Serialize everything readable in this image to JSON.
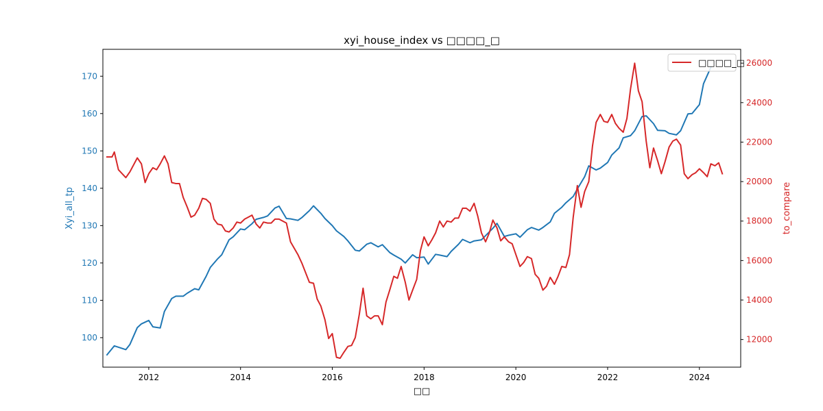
{
  "chart_data": {
    "type": "line",
    "title": "xyi_house_index vs □□□□_□",
    "xlabel": "□□",
    "ylabel_left": "Xyi_all_tp",
    "ylabel_right": "to_compare",
    "xlim": [
      2011.0,
      2024.9
    ],
    "ylim_left": [
      92.1,
      177.2
    ],
    "ylim_right": [
      10600,
      26700
    ],
    "x_ticks": [
      2012,
      2014,
      2016,
      2018,
      2020,
      2022,
      2024
    ],
    "x_tick_labels": [
      "2012",
      "2014",
      "2016",
      "2018",
      "2020",
      "2022",
      "2024"
    ],
    "y_left_ticks": [
      100,
      110,
      120,
      130,
      140,
      150,
      160,
      170
    ],
    "y_left_tick_labels": [
      "100",
      "110",
      "120",
      "130",
      "140",
      "150",
      "160",
      "170"
    ],
    "y_right_ticks": [
      12000,
      14000,
      16000,
      18000,
      20000,
      22000,
      24000,
      26000
    ],
    "y_right_tick_labels": [
      "12000",
      "14000",
      "16000",
      "18000",
      "20000",
      "22000",
      "24000",
      "26000"
    ],
    "legend": {
      "placement": "top-right",
      "entries": [
        "□□□□_□"
      ]
    },
    "colors": {
      "left": "#1f77b4",
      "right": "#d62728",
      "axis": "#000000"
    },
    "series": [
      {
        "name": "Xyi_all_tp",
        "axis": "left",
        "color": "#1f77b4",
        "points": [
          [
            2011.09,
            95.4
          ],
          [
            2011.25,
            97.8
          ],
          [
            2011.5,
            96.8
          ],
          [
            2011.59,
            98.2
          ],
          [
            2011.75,
            102.7
          ],
          [
            2011.84,
            103.7
          ],
          [
            2012.0,
            104.6
          ],
          [
            2012.09,
            102.9
          ],
          [
            2012.25,
            102.6
          ],
          [
            2012.34,
            107.0
          ],
          [
            2012.5,
            110.5
          ],
          [
            2012.59,
            111.1
          ],
          [
            2012.75,
            111.1
          ],
          [
            2012.84,
            111.9
          ],
          [
            2013.0,
            113.1
          ],
          [
            2013.09,
            112.8
          ],
          [
            2013.25,
            116.4
          ],
          [
            2013.34,
            118.8
          ],
          [
            2013.5,
            121.1
          ],
          [
            2013.59,
            122.2
          ],
          [
            2013.75,
            126.2
          ],
          [
            2013.84,
            127.0
          ],
          [
            2014.0,
            129.1
          ],
          [
            2014.09,
            128.9
          ],
          [
            2014.25,
            130.5
          ],
          [
            2014.34,
            131.7
          ],
          [
            2014.5,
            132.2
          ],
          [
            2014.59,
            132.6
          ],
          [
            2014.75,
            134.7
          ],
          [
            2014.84,
            135.2
          ],
          [
            2015.0,
            131.9
          ],
          [
            2015.09,
            131.8
          ],
          [
            2015.25,
            131.4
          ],
          [
            2015.34,
            132.2
          ],
          [
            2015.5,
            134.0
          ],
          [
            2015.59,
            135.3
          ],
          [
            2015.75,
            133.3
          ],
          [
            2015.84,
            131.9
          ],
          [
            2016.0,
            130.0
          ],
          [
            2016.09,
            128.6
          ],
          [
            2016.25,
            127.1
          ],
          [
            2016.34,
            125.9
          ],
          [
            2016.5,
            123.4
          ],
          [
            2016.59,
            123.2
          ],
          [
            2016.75,
            125.0
          ],
          [
            2016.84,
            125.4
          ],
          [
            2017.0,
            124.3
          ],
          [
            2017.09,
            124.9
          ],
          [
            2017.25,
            122.8
          ],
          [
            2017.34,
            122.1
          ],
          [
            2017.5,
            121.0
          ],
          [
            2017.59,
            120.0
          ],
          [
            2017.75,
            122.2
          ],
          [
            2017.84,
            121.4
          ],
          [
            2018.0,
            121.6
          ],
          [
            2018.09,
            119.7
          ],
          [
            2018.25,
            122.3
          ],
          [
            2018.34,
            122.1
          ],
          [
            2018.5,
            121.7
          ],
          [
            2018.59,
            123.1
          ],
          [
            2018.75,
            125.0
          ],
          [
            2018.84,
            126.3
          ],
          [
            2019.0,
            125.4
          ],
          [
            2019.09,
            125.9
          ],
          [
            2019.25,
            126.2
          ],
          [
            2019.34,
            127.3
          ],
          [
            2019.5,
            129.3
          ],
          [
            2019.59,
            130.6
          ],
          [
            2019.75,
            127.1
          ],
          [
            2019.84,
            127.4
          ],
          [
            2020.0,
            127.8
          ],
          [
            2020.09,
            126.9
          ],
          [
            2020.25,
            128.9
          ],
          [
            2020.34,
            129.5
          ],
          [
            2020.5,
            128.8
          ],
          [
            2020.59,
            129.5
          ],
          [
            2020.75,
            131.0
          ],
          [
            2020.84,
            133.3
          ],
          [
            2021.0,
            134.9
          ],
          [
            2021.09,
            136.1
          ],
          [
            2021.25,
            137.8
          ],
          [
            2021.34,
            139.8
          ],
          [
            2021.5,
            143.1
          ],
          [
            2021.59,
            146.0
          ],
          [
            2021.75,
            144.9
          ],
          [
            2021.84,
            145.4
          ],
          [
            2022.0,
            146.9
          ],
          [
            2022.09,
            148.9
          ],
          [
            2022.25,
            150.8
          ],
          [
            2022.34,
            153.5
          ],
          [
            2022.5,
            154.1
          ],
          [
            2022.59,
            155.4
          ],
          [
            2022.75,
            159.2
          ],
          [
            2022.84,
            159.4
          ],
          [
            2023.0,
            157.3
          ],
          [
            2023.09,
            155.5
          ],
          [
            2023.25,
            155.4
          ],
          [
            2023.34,
            154.7
          ],
          [
            2023.5,
            154.3
          ],
          [
            2023.59,
            155.4
          ],
          [
            2023.75,
            159.9
          ],
          [
            2023.84,
            160.0
          ],
          [
            2024.0,
            162.4
          ],
          [
            2024.09,
            168.0
          ],
          [
            2024.25,
            172.4
          ]
        ]
      },
      {
        "name": "□□□□_□",
        "axis": "right",
        "color": "#d62728",
        "points": [
          [
            2011.09,
            21250
          ],
          [
            2011.2,
            21250
          ],
          [
            2011.25,
            21500
          ],
          [
            2011.34,
            20600
          ],
          [
            2011.5,
            20200
          ],
          [
            2011.59,
            20500
          ],
          [
            2011.75,
            21200
          ],
          [
            2011.84,
            20900
          ],
          [
            2011.92,
            19950
          ],
          [
            2012.0,
            20400
          ],
          [
            2012.09,
            20700
          ],
          [
            2012.17,
            20600
          ],
          [
            2012.25,
            20900
          ],
          [
            2012.34,
            21300
          ],
          [
            2012.42,
            20900
          ],
          [
            2012.5,
            19950
          ],
          [
            2012.59,
            19900
          ],
          [
            2012.67,
            19900
          ],
          [
            2012.75,
            19200
          ],
          [
            2012.84,
            18700
          ],
          [
            2012.92,
            18200
          ],
          [
            2013.0,
            18300
          ],
          [
            2013.09,
            18650
          ],
          [
            2013.17,
            19150
          ],
          [
            2013.25,
            19100
          ],
          [
            2013.34,
            18900
          ],
          [
            2013.42,
            18100
          ],
          [
            2013.5,
            17850
          ],
          [
            2013.59,
            17800
          ],
          [
            2013.67,
            17500
          ],
          [
            2013.75,
            17450
          ],
          [
            2013.84,
            17650
          ],
          [
            2013.92,
            17950
          ],
          [
            2014.0,
            17900
          ],
          [
            2014.09,
            18100
          ],
          [
            2014.17,
            18200
          ],
          [
            2014.25,
            18300
          ],
          [
            2014.34,
            17850
          ],
          [
            2014.42,
            17650
          ],
          [
            2014.5,
            17950
          ],
          [
            2014.59,
            17900
          ],
          [
            2014.67,
            17900
          ],
          [
            2014.75,
            18100
          ],
          [
            2014.84,
            18100
          ],
          [
            2015.0,
            17900
          ],
          [
            2015.09,
            16950
          ],
          [
            2015.25,
            16300
          ],
          [
            2015.34,
            15850
          ],
          [
            2015.5,
            14900
          ],
          [
            2015.59,
            14850
          ],
          [
            2015.67,
            14050
          ],
          [
            2015.75,
            13700
          ],
          [
            2015.84,
            13000
          ],
          [
            2015.92,
            12050
          ],
          [
            2016.0,
            12300
          ],
          [
            2016.09,
            11100
          ],
          [
            2016.17,
            11050
          ],
          [
            2016.25,
            11350
          ],
          [
            2016.34,
            11650
          ],
          [
            2016.42,
            11700
          ],
          [
            2016.5,
            12100
          ],
          [
            2016.59,
            13300
          ],
          [
            2016.67,
            14600
          ],
          [
            2016.75,
            13200
          ],
          [
            2016.84,
            13050
          ],
          [
            2016.92,
            13200
          ],
          [
            2017.0,
            13200
          ],
          [
            2017.09,
            12750
          ],
          [
            2017.17,
            13900
          ],
          [
            2017.25,
            14500
          ],
          [
            2017.34,
            15200
          ],
          [
            2017.42,
            15100
          ],
          [
            2017.5,
            15700
          ],
          [
            2017.59,
            14900
          ],
          [
            2017.67,
            14000
          ],
          [
            2017.75,
            14500
          ],
          [
            2017.84,
            15050
          ],
          [
            2017.92,
            16500
          ],
          [
            2018.0,
            17200
          ],
          [
            2018.09,
            16750
          ],
          [
            2018.17,
            17050
          ],
          [
            2018.25,
            17400
          ],
          [
            2018.34,
            18000
          ],
          [
            2018.42,
            17700
          ],
          [
            2018.5,
            18000
          ],
          [
            2018.59,
            17950
          ],
          [
            2018.67,
            18150
          ],
          [
            2018.75,
            18150
          ],
          [
            2018.84,
            18650
          ],
          [
            2018.92,
            18650
          ],
          [
            2019.0,
            18500
          ],
          [
            2019.09,
            18900
          ],
          [
            2019.17,
            18250
          ],
          [
            2019.25,
            17400
          ],
          [
            2019.34,
            16950
          ],
          [
            2019.42,
            17400
          ],
          [
            2019.5,
            18050
          ],
          [
            2019.59,
            17650
          ],
          [
            2019.67,
            17000
          ],
          [
            2019.75,
            17200
          ],
          [
            2019.84,
            16950
          ],
          [
            2019.92,
            16850
          ],
          [
            2020.0,
            16300
          ],
          [
            2020.09,
            15700
          ],
          [
            2020.17,
            15900
          ],
          [
            2020.25,
            16200
          ],
          [
            2020.34,
            16100
          ],
          [
            2020.42,
            15300
          ],
          [
            2020.5,
            15100
          ],
          [
            2020.59,
            14500
          ],
          [
            2020.67,
            14700
          ],
          [
            2020.75,
            15150
          ],
          [
            2020.84,
            14800
          ],
          [
            2020.92,
            15200
          ],
          [
            2021.0,
            15700
          ],
          [
            2021.09,
            15650
          ],
          [
            2021.17,
            16300
          ],
          [
            2021.25,
            18200
          ],
          [
            2021.34,
            19800
          ],
          [
            2021.42,
            18700
          ],
          [
            2021.5,
            19500
          ],
          [
            2021.59,
            20000
          ],
          [
            2021.67,
            21800
          ],
          [
            2021.75,
            23000
          ],
          [
            2021.84,
            23400
          ],
          [
            2021.92,
            23050
          ],
          [
            2022.0,
            23000
          ],
          [
            2022.09,
            23400
          ],
          [
            2022.17,
            22950
          ],
          [
            2022.25,
            22700
          ],
          [
            2022.34,
            22500
          ],
          [
            2022.42,
            23200
          ],
          [
            2022.5,
            24700
          ],
          [
            2022.59,
            26000
          ],
          [
            2022.67,
            24600
          ],
          [
            2022.75,
            24050
          ],
          [
            2022.84,
            22050
          ],
          [
            2022.92,
            20700
          ],
          [
            2023.0,
            21700
          ],
          [
            2023.09,
            21050
          ],
          [
            2023.17,
            20400
          ],
          [
            2023.25,
            21000
          ],
          [
            2023.34,
            21750
          ],
          [
            2023.42,
            22050
          ],
          [
            2023.5,
            22150
          ],
          [
            2023.59,
            21850
          ],
          [
            2023.67,
            20400
          ],
          [
            2023.75,
            20150
          ],
          [
            2023.84,
            20350
          ],
          [
            2023.92,
            20450
          ],
          [
            2024.0,
            20650
          ],
          [
            2024.09,
            20450
          ],
          [
            2024.17,
            20250
          ],
          [
            2024.25,
            20900
          ],
          [
            2024.34,
            20800
          ],
          [
            2024.42,
            20950
          ],
          [
            2024.5,
            20400
          ]
        ]
      }
    ]
  }
}
